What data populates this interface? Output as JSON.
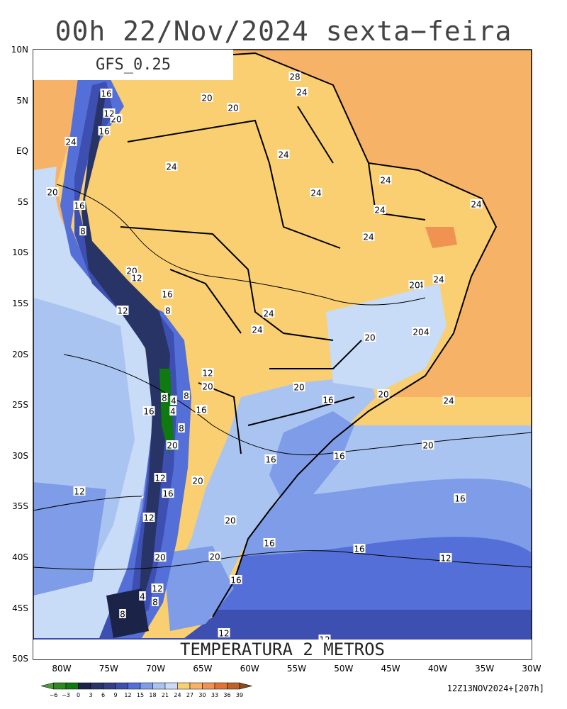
{
  "title": "00h 22/Nov/2024 sexta−feira",
  "model": "GFS_0.25",
  "field_title": "TEMPERATURA 2 METROS",
  "run_info": "12Z13NOV2024+[207h]",
  "lat_labels": [
    "10N",
    "5N",
    "EQ",
    "5S",
    "10S",
    "15S",
    "20S",
    "25S",
    "30S",
    "35S",
    "40S",
    "45S",
    "50S"
  ],
  "lon_labels": [
    "80W",
    "75W",
    "70W",
    "65W",
    "60W",
    "55W",
    "50W",
    "45W",
    "40W",
    "35W",
    "30W"
  ],
  "colorbar": {
    "labels": [
      "−6",
      "−3",
      "0",
      "3",
      "6",
      "9",
      "12",
      "15",
      "18",
      "21",
      "24",
      "27",
      "30",
      "33",
      "36",
      "39"
    ],
    "colors": [
      "#4a9a3a",
      "#2c8a1e",
      "#0e7a10",
      "#1b2448",
      "#283466",
      "#333f86",
      "#3d4fb0",
      "#5470d8",
      "#7e9ce8",
      "#aac4f2",
      "#c8dbf7",
      "#f9cf72",
      "#f6b266",
      "#f09352",
      "#e27335",
      "#c0612a",
      "#8c4a1e"
    ]
  },
  "contour_labels": [
    "28",
    "24",
    "24",
    "24",
    "24",
    "24",
    "24",
    "24",
    "24",
    "24",
    "24",
    "24",
    "24",
    "24",
    "24",
    "24",
    "20",
    "20",
    "20",
    "20",
    "20",
    "20",
    "20",
    "20",
    "20",
    "20",
    "20",
    "20",
    "20",
    "20",
    "20",
    "20",
    "20",
    "16",
    "16",
    "16",
    "16",
    "16",
    "16",
    "16",
    "16",
    "16",
    "16",
    "16",
    "16",
    "16",
    "16",
    "12",
    "12",
    "12",
    "12",
    "12",
    "12",
    "12",
    "12",
    "12",
    "12",
    "12",
    "8",
    "8",
    "8",
    "8",
    "8",
    "8",
    "8",
    "4",
    "4",
    "4"
  ]
}
